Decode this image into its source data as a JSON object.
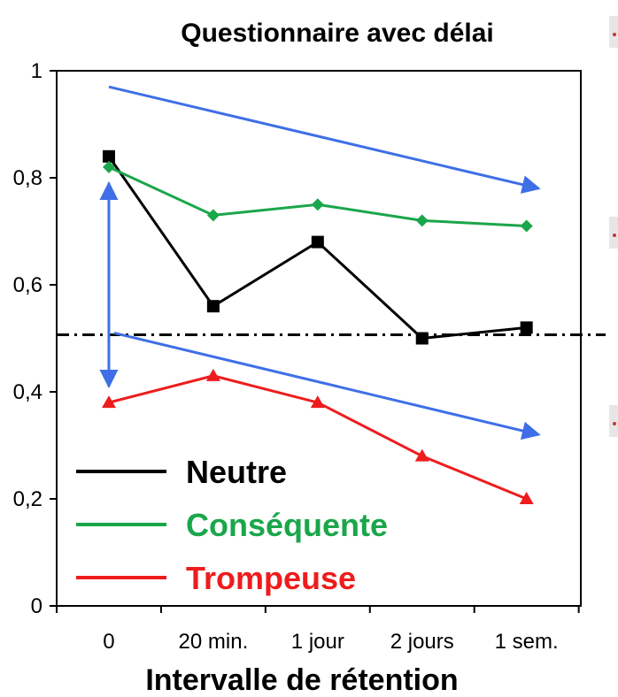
{
  "chart_data": {
    "type": "line",
    "title": "Questionnaire avec délai",
    "xlabel": "Intervalle de rétention",
    "ylabel": "",
    "categories": [
      "0",
      "20 min.",
      "1 jour",
      "2 jours",
      "1 sem."
    ],
    "ylim": [
      0,
      1
    ],
    "yticks": [
      0,
      0.2,
      0.4,
      0.6,
      0.8,
      1
    ],
    "ytick_labels": [
      "0",
      "0,2",
      "0,4",
      "0,6",
      "0,8",
      "1"
    ],
    "series": [
      {
        "name": "Neutre",
        "color": "#000000",
        "marker": "square",
        "values": [
          0.84,
          0.56,
          0.68,
          0.5,
          0.52
        ]
      },
      {
        "name": "Conséquente",
        "color": "#1aa64a",
        "marker": "diamond",
        "values": [
          0.82,
          0.73,
          0.75,
          0.72,
          0.71
        ]
      },
      {
        "name": "Trompeuse",
        "color": "#ee1c1c",
        "marker": "triangle",
        "values": [
          0.38,
          0.43,
          0.38,
          0.28,
          0.2
        ]
      }
    ],
    "reference_line": {
      "y": 0.5,
      "style": "dash-dot",
      "color": "#000000"
    },
    "annotations": [
      {
        "type": "trend-arrow",
        "color": "#3f6fe6",
        "from": {
          "x": 0,
          "y": 0.97
        },
        "to": {
          "x": 4,
          "y": 0.78
        }
      },
      {
        "type": "trend-arrow",
        "color": "#3f6fe6",
        "from": {
          "x": 0.05,
          "y": 0.51
        },
        "to": {
          "x": 4,
          "y": 0.32
        }
      },
      {
        "type": "double-arrow",
        "color": "#3f6fe6",
        "from": {
          "x": 0,
          "y": 0.79
        },
        "to": {
          "x": 0,
          "y": 0.41
        }
      }
    ],
    "legend_position": "bottom-left"
  }
}
